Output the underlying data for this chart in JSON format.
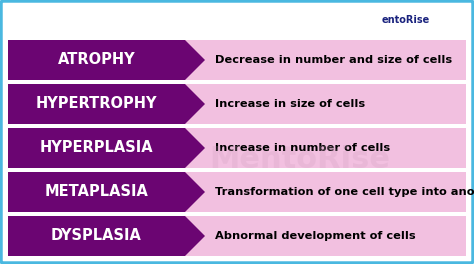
{
  "background_color": "#ffffff",
  "border_color": "#4ab8e0",
  "top_area_color": "#ffffff",
  "rows": [
    {
      "term": "ATROPHY",
      "definition": "Decrease in number and size of cells"
    },
    {
      "term": "HYPERTROPHY",
      "definition": "Increase in size of cells"
    },
    {
      "term": "HYPERPLASIA",
      "definition": "Increase in number of cells"
    },
    {
      "term": "METAPLASIA",
      "definition": "Transformation of one cell type into another"
    },
    {
      "term": "DYSPLASIA",
      "definition": "Abnormal development of cells"
    }
  ],
  "arrow_color": "#6b0572",
  "def_bg_color": "#f2c0e0",
  "def_text_color": "#000000",
  "term_text_color": "#ffffff",
  "term_fontsize": 10.5,
  "def_fontsize": 8.2,
  "logo_text": "entoRise",
  "logo_color": "#1a237e",
  "watermark_text": "MentoRise",
  "watermark_color": "#d0a0c0"
}
